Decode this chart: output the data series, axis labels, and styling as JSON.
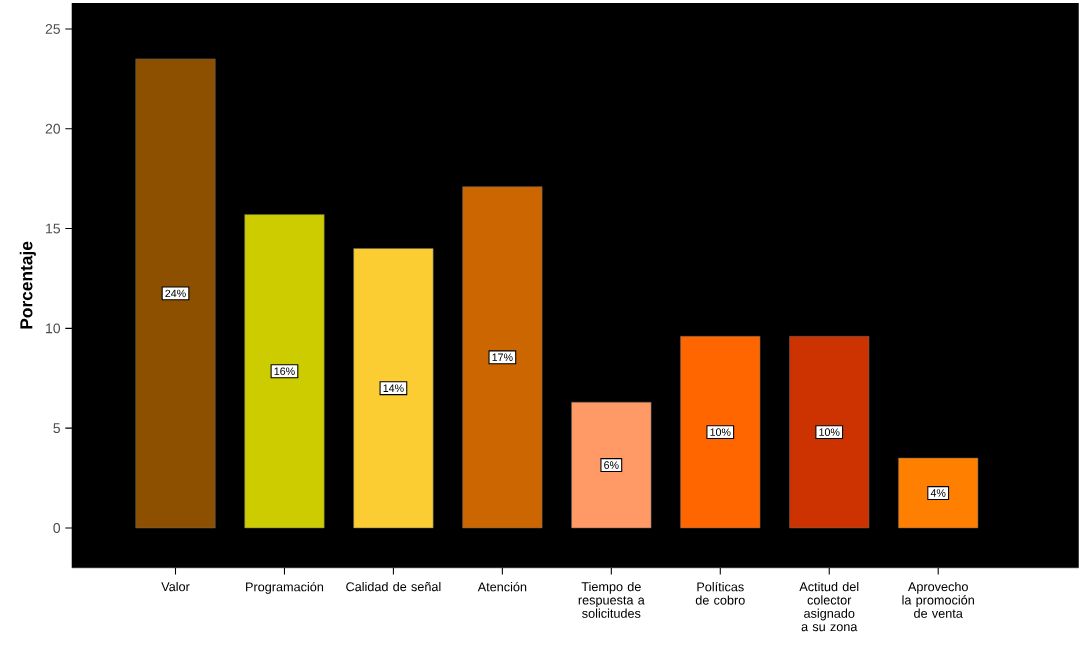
{
  "chart_data": {
    "type": "bar",
    "ylabel": "Porcentaje",
    "categories": [
      "Valor",
      "Programación",
      "Calidad de señal",
      "Atención",
      "Tiempo de respuesta a solicitudes",
      "Políticas de cobro",
      "Actitud del colector asignado a su zona",
      "Aprovecho la promoción de venta"
    ],
    "values": [
      23.5,
      15.7,
      14.0,
      17.1,
      6.3,
      9.6,
      9.6,
      3.5
    ],
    "colors": [
      "#8c5000",
      "#cccc00",
      "#fccc33",
      "#cc6600",
      "#ff9966",
      "#ff6600",
      "#cc3300",
      "#ff8000"
    ],
    "value_labels": [
      "24%",
      "16%",
      "14%",
      "17%",
      "6%",
      "10%",
      "10%",
      "4%"
    ],
    "ylim": [
      -2,
      26.3
    ],
    "yticks": [
      0,
      5,
      10,
      15,
      20,
      25
    ]
  }
}
